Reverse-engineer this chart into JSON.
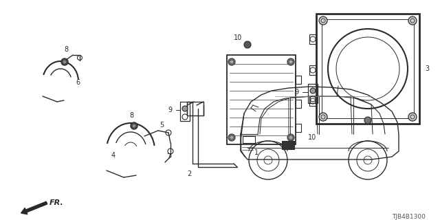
{
  "bg_color": "#ffffff",
  "line_color": "#2a2a2a",
  "diagram_code": "TJB4B1300",
  "fig_w": 6.4,
  "fig_h": 3.2,
  "dpi": 100,
  "lw": 1.0
}
